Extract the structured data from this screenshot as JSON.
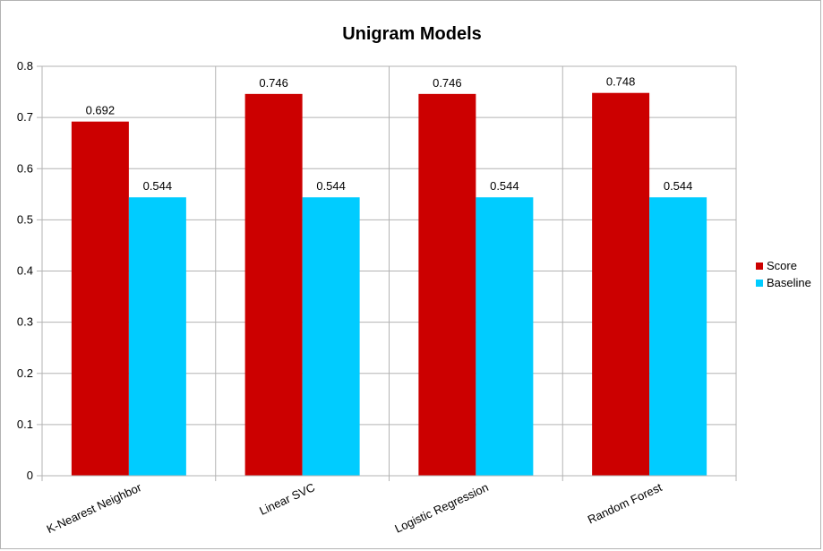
{
  "chart_data": {
    "type": "bar",
    "title": "Unigram Models",
    "categories": [
      "K-Nearest Neighbor",
      "Linear SVC",
      "Logistic Regression",
      "Random Forest"
    ],
    "series": [
      {
        "name": "Score",
        "color": "#cc0000",
        "values": [
          0.692,
          0.746,
          0.746,
          0.748
        ]
      },
      {
        "name": "Baseline",
        "color": "#00ccff",
        "values": [
          0.544,
          0.544,
          0.544,
          0.544
        ]
      }
    ],
    "data_labels": [
      [
        "0.692",
        "0.746",
        "0.746",
        "0.748"
      ],
      [
        "0.544",
        "0.544",
        "0.544",
        "0.544"
      ]
    ],
    "xlabel": "",
    "ylabel": "",
    "ylim": [
      0,
      0.8
    ],
    "yticks": [
      "0",
      "0.1",
      "0.2",
      "0.3",
      "0.4",
      "0.5",
      "0.6",
      "0.7",
      "0.8"
    ],
    "grid": true,
    "legend_position": "right",
    "x_tick_rotation": "angled"
  }
}
